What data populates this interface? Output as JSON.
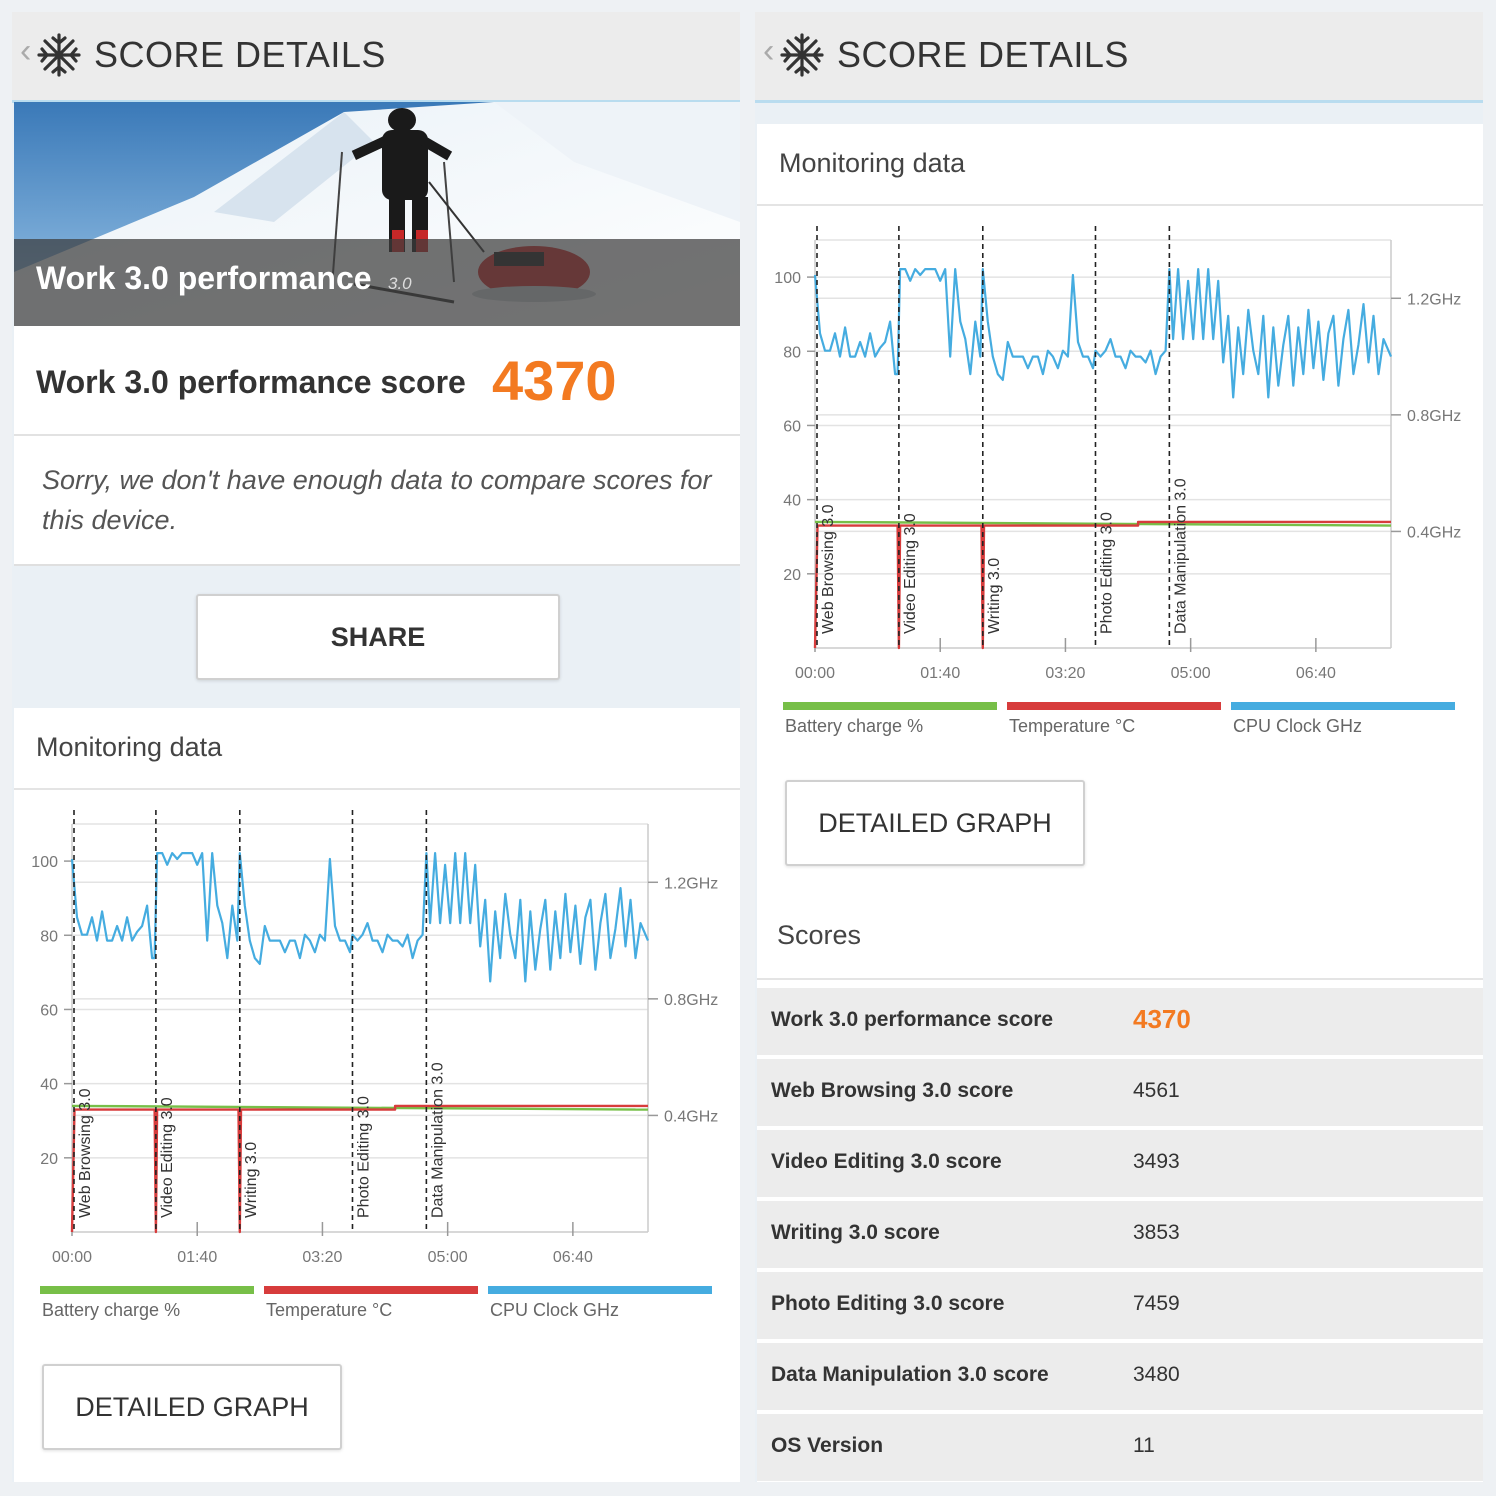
{
  "header": {
    "back": "‹",
    "title": "SCORE DETAILS"
  },
  "hero": {
    "title": "Work 3.0 performance",
    "version": "3.0"
  },
  "score": {
    "label": "Work 3.0 performance score",
    "value": "4370"
  },
  "message": "Sorry, we don't have enough data to compare scores for this device.",
  "share_label": "SHARE",
  "monitoring": {
    "title": "Monitoring data",
    "detailed_graph_label": "DETAILED GRAPH",
    "legend": [
      {
        "label": "Battery charge %",
        "color": "#77bf48"
      },
      {
        "label": "Temperature °C",
        "color": "#d73c3c"
      },
      {
        "label": "CPU Clock GHz",
        "color": "#45ace0"
      }
    ]
  },
  "chart_data": {
    "type": "line",
    "x_unit": "mm:ss",
    "xlim": [
      "00:00",
      "07:40"
    ],
    "x_ticks": [
      "00:00",
      "01:40",
      "03:20",
      "05:00",
      "06:40"
    ],
    "y_left_ticks": [
      20,
      40,
      60,
      80,
      100
    ],
    "ylim_left": [
      0,
      110
    ],
    "y_right_ticks": [
      "0.4GHz",
      "0.8GHz",
      "1.2GHz"
    ],
    "ylim_right_ghz": [
      0.0,
      1.4
    ],
    "grid": true,
    "legend_placement": "bottom",
    "markers": [
      {
        "label": "Web Browsing 3.0",
        "x": "00:00"
      },
      {
        "label": "Video Editing 3.0",
        "x": "01:07"
      },
      {
        "label": "Writing 3.0",
        "x": "02:14"
      },
      {
        "label": "Photo Editing 3.0",
        "x": "03:44"
      },
      {
        "label": "Data Manipulation 3.0",
        "x": "04:43"
      }
    ],
    "series": [
      {
        "name": "Battery charge %",
        "color": "#77bf48",
        "points": [
          [
            "00:00",
            34
          ],
          [
            "07:40",
            33
          ]
        ]
      },
      {
        "name": "Temperature °C",
        "color": "#d73c3c",
        "points": [
          [
            "00:00",
            0
          ],
          [
            "00:02",
            33
          ],
          [
            "01:06",
            33
          ],
          [
            "01:07",
            0
          ],
          [
            "01:08",
            33
          ],
          [
            "02:13",
            33
          ],
          [
            "02:14",
            0
          ],
          [
            "02:15",
            33
          ],
          [
            "04:18",
            33
          ],
          [
            "04:18",
            34
          ],
          [
            "07:40",
            34
          ]
        ]
      },
      {
        "name": "CPU Clock GHz",
        "color": "#45ace0",
        "points": [
          [
            "00:00",
            1.28
          ],
          [
            "00:04",
            1.08
          ],
          [
            "00:08",
            1.02
          ],
          [
            "00:12",
            1.02
          ],
          [
            "00:16",
            1.08
          ],
          [
            "00:20",
            1.0
          ],
          [
            "00:24",
            1.1
          ],
          [
            "00:28",
            1.0
          ],
          [
            "00:32",
            1.0
          ],
          [
            "00:36",
            1.05
          ],
          [
            "00:40",
            1.0
          ],
          [
            "00:44",
            1.08
          ],
          [
            "00:48",
            1.0
          ],
          [
            "00:52",
            1.03
          ],
          [
            "00:56",
            1.05
          ],
          [
            "01:00",
            1.12
          ],
          [
            "01:04",
            0.94
          ],
          [
            "01:06",
            0.94
          ],
          [
            "01:08",
            1.3
          ],
          [
            "01:12",
            1.3
          ],
          [
            "01:16",
            1.26
          ],
          [
            "01:20",
            1.3
          ],
          [
            "01:24",
            1.28
          ],
          [
            "01:28",
            1.3
          ],
          [
            "01:32",
            1.3
          ],
          [
            "01:36",
            1.3
          ],
          [
            "01:40",
            1.26
          ],
          [
            "01:44",
            1.3
          ],
          [
            "01:48",
            1.0
          ],
          [
            "01:52",
            1.3
          ],
          [
            "01:56",
            1.12
          ],
          [
            "02:00",
            1.06
          ],
          [
            "02:04",
            0.94
          ],
          [
            "02:08",
            1.12
          ],
          [
            "02:12",
            1.0
          ],
          [
            "02:14",
            1.3
          ],
          [
            "02:18",
            1.12
          ],
          [
            "02:22",
            1.0
          ],
          [
            "02:26",
            0.94
          ],
          [
            "02:30",
            0.92
          ],
          [
            "02:34",
            1.05
          ],
          [
            "02:38",
            1.0
          ],
          [
            "02:42",
            1.0
          ],
          [
            "02:46",
            1.0
          ],
          [
            "02:50",
            0.96
          ],
          [
            "02:54",
            1.0
          ],
          [
            "02:58",
            1.0
          ],
          [
            "03:02",
            0.94
          ],
          [
            "03:06",
            1.02
          ],
          [
            "03:10",
            1.0
          ],
          [
            "03:14",
            0.96
          ],
          [
            "03:18",
            1.02
          ],
          [
            "03:22",
            1.0
          ],
          [
            "03:26",
            1.28
          ],
          [
            "03:30",
            1.05
          ],
          [
            "03:34",
            1.0
          ],
          [
            "03:38",
            1.0
          ],
          [
            "03:42",
            0.96
          ],
          [
            "03:44",
            1.02
          ],
          [
            "03:48",
            1.0
          ],
          [
            "03:52",
            1.02
          ],
          [
            "03:56",
            1.06
          ],
          [
            "04:00",
            1.0
          ],
          [
            "04:04",
            1.0
          ],
          [
            "04:08",
            0.96
          ],
          [
            "04:12",
            1.02
          ],
          [
            "04:16",
            1.0
          ],
          [
            "04:20",
            1.0
          ],
          [
            "04:24",
            0.98
          ],
          [
            "04:28",
            1.02
          ],
          [
            "04:32",
            0.94
          ],
          [
            "04:36",
            1.0
          ],
          [
            "04:40",
            1.02
          ],
          [
            "04:43",
            1.3
          ],
          [
            "04:46",
            1.06
          ],
          [
            "04:50",
            1.3
          ],
          [
            "04:54",
            1.06
          ],
          [
            "04:58",
            1.26
          ],
          [
            "05:02",
            1.06
          ],
          [
            "05:06",
            1.3
          ],
          [
            "05:10",
            1.06
          ],
          [
            "05:14",
            1.3
          ],
          [
            "05:18",
            1.06
          ],
          [
            "05:22",
            1.26
          ],
          [
            "05:26",
            0.98
          ],
          [
            "05:30",
            1.14
          ],
          [
            "05:34",
            0.86
          ],
          [
            "05:38",
            1.1
          ],
          [
            "05:42",
            0.94
          ],
          [
            "05:46",
            1.16
          ],
          [
            "05:50",
            1.02
          ],
          [
            "05:54",
            0.94
          ],
          [
            "05:58",
            1.14
          ],
          [
            "06:02",
            0.86
          ],
          [
            "06:06",
            1.1
          ],
          [
            "06:10",
            0.9
          ],
          [
            "06:14",
            1.04
          ],
          [
            "06:18",
            1.14
          ],
          [
            "06:22",
            0.9
          ],
          [
            "06:26",
            1.1
          ],
          [
            "06:30",
            0.94
          ],
          [
            "06:34",
            1.16
          ],
          [
            "06:38",
            0.96
          ],
          [
            "06:42",
            1.12
          ],
          [
            "06:46",
            0.92
          ],
          [
            "06:50",
            1.08
          ],
          [
            "06:54",
            1.14
          ],
          [
            "06:58",
            0.9
          ],
          [
            "07:02",
            1.06
          ],
          [
            "07:06",
            1.16
          ],
          [
            "07:10",
            0.94
          ],
          [
            "07:14",
            1.04
          ],
          [
            "07:18",
            1.18
          ],
          [
            "07:22",
            0.98
          ],
          [
            "07:26",
            1.14
          ],
          [
            "07:30",
            0.94
          ],
          [
            "07:34",
            1.06
          ],
          [
            "07:40",
            1.0
          ]
        ]
      }
    ]
  },
  "scores": {
    "title": "Scores",
    "rows": [
      {
        "label": "Work 3.0 performance score",
        "value": "4370"
      },
      {
        "label": "Web Browsing 3.0 score",
        "value": "4561"
      },
      {
        "label": "Video Editing 3.0 score",
        "value": "3493"
      },
      {
        "label": "Writing 3.0 score",
        "value": "3853"
      },
      {
        "label": "Photo Editing 3.0 score",
        "value": "7459"
      },
      {
        "label": "Data Manipulation 3.0 score",
        "value": "3480"
      },
      {
        "label": "OS Version",
        "value": "11"
      }
    ]
  },
  "colors": {
    "accent": "#f37a21",
    "header_rule": "#b9dcef"
  }
}
